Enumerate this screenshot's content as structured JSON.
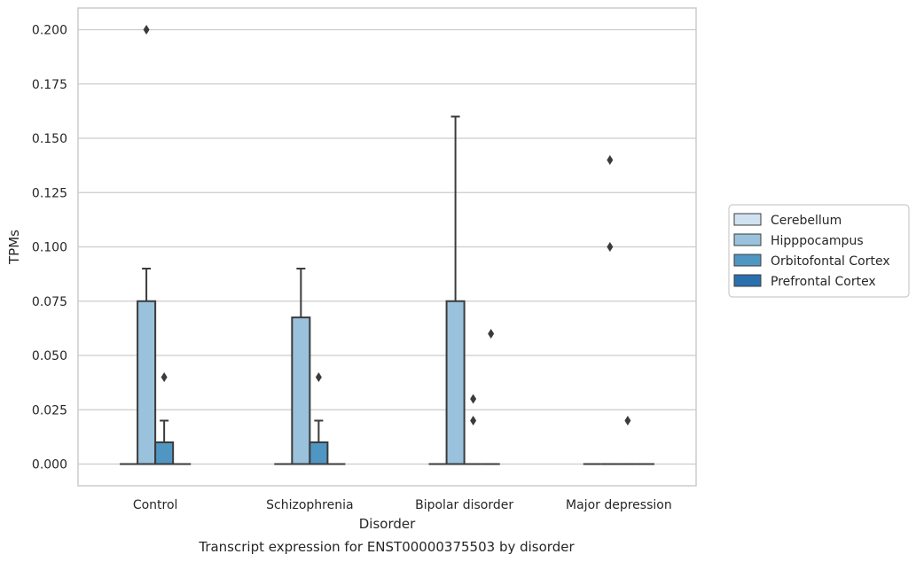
{
  "chart_data": {
    "type": "box",
    "title": "",
    "xlabel": "Disorder",
    "ylabel": "TPMs",
    "caption": "Transcript expression for ENST00000375503 by disorder",
    "ylim": [
      -0.01,
      0.21
    ],
    "yticks": [
      "0.000",
      "0.025",
      "0.050",
      "0.075",
      "0.100",
      "0.125",
      "0.150",
      "0.175",
      "0.200"
    ],
    "grid": true,
    "legend_position": "right",
    "categories": [
      "Control",
      "Schizophrenia",
      "Bipolar disorder",
      "Major depression"
    ],
    "series": [
      {
        "name": "Cerebellum",
        "color": "#d0e2f1",
        "boxes": [
          {
            "q1": 0,
            "median": 0,
            "q3": 0,
            "whisker_low": 0,
            "whisker_high": 0,
            "outliers": []
          },
          {
            "q1": 0,
            "median": 0,
            "q3": 0,
            "whisker_low": 0,
            "whisker_high": 0,
            "outliers": []
          },
          {
            "q1": 0,
            "median": 0,
            "q3": 0,
            "whisker_low": 0,
            "whisker_high": 0,
            "outliers": []
          },
          {
            "q1": 0,
            "median": 0,
            "q3": 0,
            "whisker_low": 0,
            "whisker_high": 0,
            "outliers": []
          }
        ]
      },
      {
        "name": "Hipppocampus",
        "color": "#9ac2dc",
        "boxes": [
          {
            "q1": 0,
            "median": 0,
            "q3": 0.075,
            "whisker_low": 0,
            "whisker_high": 0.09,
            "outliers": [
              0.2
            ]
          },
          {
            "q1": 0,
            "median": 0,
            "q3": 0.0675,
            "whisker_low": 0,
            "whisker_high": 0.09,
            "outliers": []
          },
          {
            "q1": 0,
            "median": 0,
            "q3": 0.075,
            "whisker_low": 0,
            "whisker_high": 0.16,
            "outliers": []
          },
          {
            "q1": 0,
            "median": 0,
            "q3": 0,
            "whisker_low": 0,
            "whisker_high": 0,
            "outliers": [
              0.14,
              0.1
            ]
          }
        ]
      },
      {
        "name": "Orbitofontal Cortex",
        "color": "#5096c3",
        "boxes": [
          {
            "q1": 0,
            "median": 0,
            "q3": 0.01,
            "whisker_low": 0,
            "whisker_high": 0.02,
            "outliers": [
              0.04
            ]
          },
          {
            "q1": 0,
            "median": 0,
            "q3": 0.01,
            "whisker_low": 0,
            "whisker_high": 0.02,
            "outliers": [
              0.04
            ]
          },
          {
            "q1": 0,
            "median": 0,
            "q3": 0,
            "whisker_low": 0,
            "whisker_high": 0,
            "outliers": [
              0.03,
              0.02
            ]
          },
          {
            "q1": 0,
            "median": 0,
            "q3": 0,
            "whisker_low": 0,
            "whisker_high": 0,
            "outliers": [
              0.02
            ]
          }
        ]
      },
      {
        "name": "Prefrontal Cortex",
        "color": "#2a6fae",
        "boxes": [
          {
            "q1": 0,
            "median": 0,
            "q3": 0,
            "whisker_low": 0,
            "whisker_high": 0,
            "outliers": []
          },
          {
            "q1": 0,
            "median": 0,
            "q3": 0,
            "whisker_low": 0,
            "whisker_high": 0,
            "outliers": []
          },
          {
            "q1": 0,
            "median": 0,
            "q3": 0,
            "whisker_low": 0,
            "whisker_high": 0,
            "outliers": [
              0.06
            ]
          },
          {
            "q1": 0,
            "median": 0,
            "q3": 0,
            "whisker_low": 0,
            "whisker_high": 0,
            "outliers": []
          }
        ]
      }
    ]
  }
}
